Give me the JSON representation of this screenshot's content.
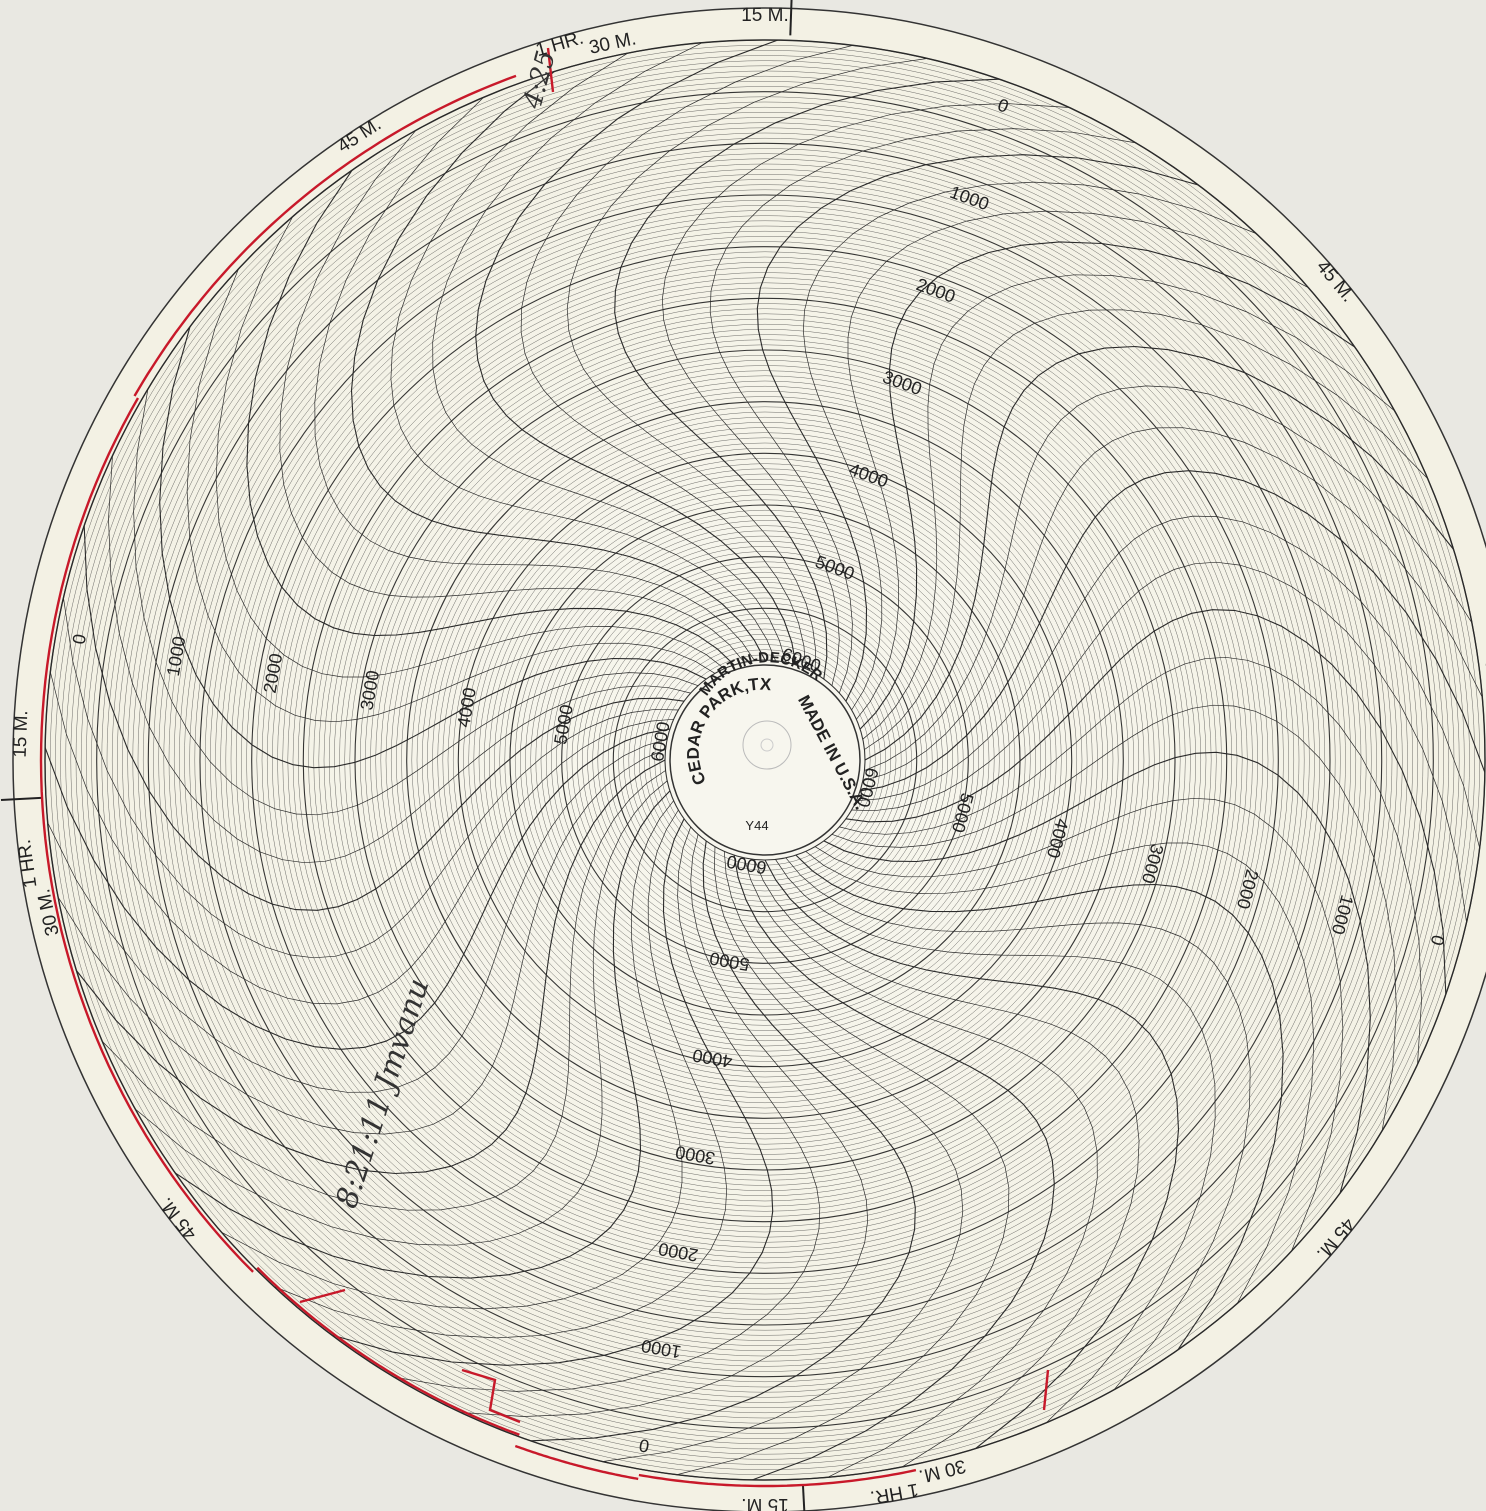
{
  "chart": {
    "manufacturer": "MARTIN-DECKER",
    "location": "CEDAR PARK,TX",
    "made_in": "MADE IN U.S.A.",
    "model": "Y44",
    "scale_labels": [
      "0",
      "1000",
      "2000",
      "3000",
      "4000",
      "5000",
      "6000"
    ],
    "time_labels": {
      "m15": "15 M.",
      "m30": "30 M.",
      "m45": "45 M.",
      "hr1": "1 HR."
    },
    "handwriting": {
      "top": "4:25",
      "left": "8:21:11 Jmvanu"
    },
    "colors": {
      "paper": "#f6f5ec",
      "grid": "#2a2a2a",
      "trace": "#c8192a",
      "background": "#e9e8e2"
    }
  }
}
